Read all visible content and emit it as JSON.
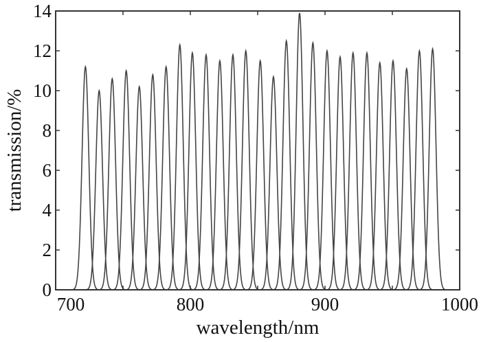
{
  "chart_data": {
    "type": "line",
    "title": "",
    "xlabel": "wavelength/nm",
    "ylabel": "transmission/%",
    "xlim": [
      700,
      1000
    ],
    "ylim": [
      0,
      14
    ],
    "xticks": [
      "700",
      "800",
      "900",
      "1000"
    ],
    "yticks": [
      "0",
      "2",
      "4",
      "6",
      "8",
      "10",
      "12",
      "14"
    ],
    "grid": false,
    "legend": "none",
    "line_color": "#444444",
    "peaks": [
      {
        "center": 722.1,
        "peak": 11.2
      },
      {
        "center": 732.3,
        "peak": 10.0
      },
      {
        "center": 742.0,
        "peak": 10.6
      },
      {
        "center": 752.4,
        "peak": 11.0
      },
      {
        "center": 762.1,
        "peak": 10.2
      },
      {
        "center": 772.1,
        "peak": 10.8
      },
      {
        "center": 782.0,
        "peak": 11.2
      },
      {
        "center": 792.2,
        "peak": 12.3
      },
      {
        "center": 801.5,
        "peak": 11.9
      },
      {
        "center": 811.7,
        "peak": 11.8
      },
      {
        "center": 821.9,
        "peak": 11.5
      },
      {
        "center": 831.6,
        "peak": 11.8
      },
      {
        "center": 841.2,
        "peak": 12.0
      },
      {
        "center": 851.9,
        "peak": 11.5
      },
      {
        "center": 861.7,
        "peak": 10.7
      },
      {
        "center": 871.3,
        "peak": 12.5
      },
      {
        "center": 881.1,
        "peak": 13.9
      },
      {
        "center": 891.0,
        "peak": 12.4
      },
      {
        "center": 901.5,
        "peak": 12.0
      },
      {
        "center": 911.2,
        "peak": 11.7
      },
      {
        "center": 920.8,
        "peak": 11.9
      },
      {
        "center": 931.1,
        "peak": 11.9
      },
      {
        "center": 940.7,
        "peak": 11.4
      },
      {
        "center": 950.5,
        "peak": 11.5
      },
      {
        "center": 960.6,
        "peak": 11.1
      },
      {
        "center": 970.1,
        "peak": 12.0
      },
      {
        "center": 979.9,
        "peak": 12.1
      }
    ]
  }
}
